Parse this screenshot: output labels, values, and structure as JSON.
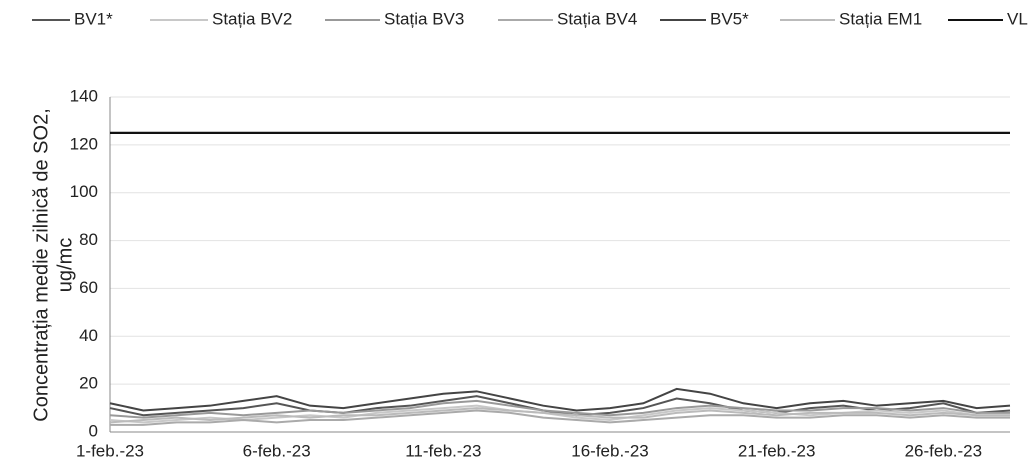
{
  "chart_data": {
    "type": "line",
    "ylabel": [
      "Concentrația medie zilnică de SO2,",
      "ug/mc"
    ],
    "categories": [
      "1-feb.-23",
      null,
      null,
      null,
      null,
      "6-feb.-23",
      null,
      null,
      null,
      null,
      "11-feb.-23",
      null,
      null,
      null,
      null,
      "16-feb.-23",
      null,
      null,
      null,
      null,
      "21-feb.-23",
      null,
      null,
      null,
      null,
      "26-feb.-23",
      null,
      null
    ],
    "series": [
      {
        "name": "BV1*",
        "color": "#555555",
        "values": [
          10,
          7,
          8,
          9,
          10,
          12,
          9,
          8,
          10,
          11,
          13,
          15,
          12,
          9,
          7,
          8,
          10,
          14,
          12,
          9,
          8,
          10,
          11,
          9,
          10,
          12,
          8,
          9
        ]
      },
      {
        "name": "Stația BV2",
        "color": "#c8c8c8",
        "values": [
          5,
          4,
          5,
          6,
          5,
          6,
          7,
          6,
          8,
          9,
          10,
          11,
          9,
          8,
          6,
          5,
          7,
          9,
          10,
          9,
          8,
          7,
          8,
          9,
          8,
          9,
          7,
          7
        ]
      },
      {
        "name": "Stația BV3",
        "color": "#999999",
        "values": [
          7,
          6,
          7,
          8,
          7,
          8,
          9,
          8,
          9,
          10,
          12,
          13,
          11,
          9,
          8,
          7,
          8,
          10,
          11,
          10,
          9,
          9,
          10,
          10,
          9,
          10,
          8,
          8
        ]
      },
      {
        "name": "Stația BV4",
        "color": "#aaaaaa",
        "values": [
          3,
          3,
          4,
          4,
          5,
          4,
          5,
          5,
          6,
          7,
          8,
          9,
          8,
          6,
          5,
          4,
          5,
          6,
          7,
          7,
          6,
          6,
          7,
          7,
          6,
          7,
          6,
          6
        ]
      },
      {
        "name": "BV5*",
        "color": "#444444",
        "values": [
          12,
          9,
          10,
          11,
          13,
          15,
          11,
          10,
          12,
          14,
          16,
          17,
          14,
          11,
          9,
          10,
          12,
          18,
          16,
          12,
          10,
          12,
          13,
          11,
          12,
          13,
          10,
          11
        ]
      },
      {
        "name": "Stația EM1",
        "color": "#bbbbbb",
        "values": [
          4,
          5,
          6,
          5,
          6,
          7,
          6,
          7,
          7,
          8,
          9,
          10,
          9,
          8,
          7,
          6,
          6,
          8,
          9,
          8,
          7,
          8,
          8,
          8,
          7,
          8,
          7,
          7
        ]
      },
      {
        "name": "VL",
        "color": "#111111",
        "values": [
          125,
          125,
          125,
          125,
          125,
          125,
          125,
          125,
          125,
          125,
          125,
          125,
          125,
          125,
          125,
          125,
          125,
          125,
          125,
          125,
          125,
          125,
          125,
          125,
          125,
          125,
          125,
          125
        ]
      }
    ],
    "ylim": [
      0,
      140
    ],
    "yticks": [
      0,
      20,
      40,
      60,
      80,
      100,
      120,
      140
    ],
    "grid": true
  }
}
